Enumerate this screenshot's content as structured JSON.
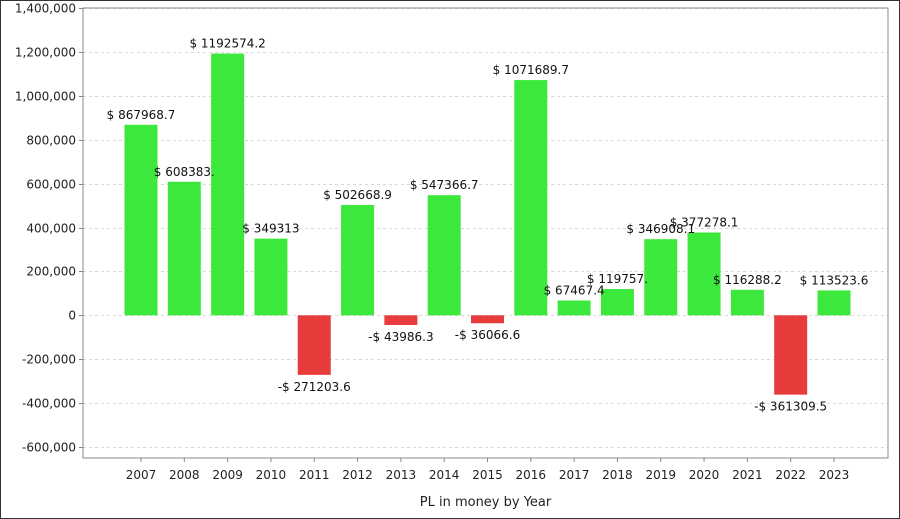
{
  "chart_data": {
    "type": "bar",
    "xlabel": "PL in money by Year",
    "categories": [
      "2007",
      "2008",
      "2009",
      "2010",
      "2011",
      "2012",
      "2013",
      "2014",
      "2015",
      "2016",
      "2017",
      "2018",
      "2019",
      "2020",
      "2021",
      "2022",
      "2023"
    ],
    "values": [
      867968.7,
      608383,
      1192574.2,
      349313,
      -271203.6,
      502668.9,
      -43986.3,
      547366.7,
      -36066.6,
      1071689.7,
      67467.4,
      119757,
      346908.1,
      377278.1,
      116288.2,
      -361309.5,
      113523.6
    ],
    "data_labels": [
      "$ 867968.7",
      "$ 608383.",
      "$ 1192574.2",
      "$ 349313",
      "-$ 271203.6",
      "$ 502668.9",
      "-$ 43986.3",
      "$ 547366.7",
      "-$ 36066.6",
      "$ 1071689.7",
      "$ 67467.4",
      "$ 119757.",
      "$ 346908.1",
      "$ 377278.1",
      "$ 116288.2",
      "-$ 361309.5",
      "$ 113523.6"
    ],
    "ylim": [
      -650000,
      1400000
    ],
    "y_ticks": [
      -600000,
      -400000,
      -200000,
      0,
      200000,
      400000,
      600000,
      800000,
      1000000,
      1200000,
      1400000
    ],
    "y_tick_labels": [
      "-600,000",
      "-400,000",
      "-200,000",
      "0",
      "200,000",
      "400,000",
      "600,000",
      "800,000",
      "1,000,000",
      "1,200,000",
      "1,400,000"
    ],
    "grid": true,
    "colors": {
      "positive": "#3de83d",
      "negative": "#e83c3c",
      "grid": "#d8d8d8",
      "axis": "#888888"
    }
  }
}
